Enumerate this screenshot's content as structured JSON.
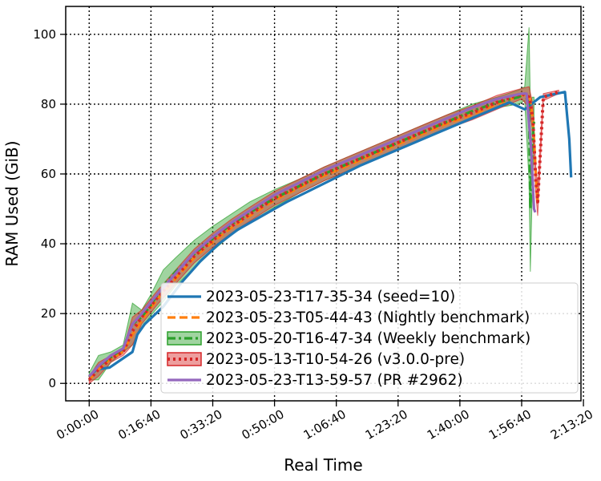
{
  "chart_data": {
    "type": "line",
    "title": "",
    "xlabel": "Real Time",
    "ylabel": "RAM Used (GiB)",
    "xlim": [
      -380,
      7960
    ],
    "ylim": [
      -5,
      108
    ],
    "x_ticks": [
      0,
      1000,
      2000,
      3000,
      4000,
      5000,
      6000,
      7000,
      8000
    ],
    "x_tick_labels": [
      "0:00:00",
      "0:16:40",
      "0:33:20",
      "0:50:00",
      "1:06:40",
      "1:23:20",
      "1:40:00",
      "1:56:40",
      "2:13:20"
    ],
    "y_ticks": [
      0,
      20,
      40,
      60,
      80,
      100
    ],
    "y_tick_labels": [
      "0",
      "20",
      "40",
      "60",
      "80",
      "100"
    ],
    "grid": true,
    "legend_position": "lower-right",
    "series": [
      {
        "name": "2023-05-23-T17-35-34 (seed=10)",
        "color": "#1f77b4",
        "style": "solid",
        "x": [
          0,
          120,
          330,
          700,
          780,
          900,
          1200,
          1500,
          1800,
          2100,
          2400,
          2800,
          3200,
          3600,
          4000,
          4400,
          4800,
          5200,
          5600,
          6000,
          6400,
          6800,
          7050,
          7300,
          7700,
          7770,
          7800
        ],
        "y": [
          2,
          4,
          4.5,
          9,
          14,
          17,
          22,
          29,
          35,
          40,
          44,
          48,
          52,
          55.5,
          59,
          62.5,
          65.5,
          68.5,
          71.5,
          74.5,
          77.5,
          80.5,
          78.5,
          82,
          83.5,
          70,
          59
        ]
      },
      {
        "name": "2023-05-23-T05-44-43 (Nightly benchmark)",
        "color": "#ff7f0e",
        "style": "dashed",
        "x": [
          0,
          150,
          350,
          550,
          700,
          850,
          1100,
          1400,
          1700,
          2000,
          2300,
          2600,
          3000,
          3400,
          3800,
          4200,
          4600,
          5000,
          5400,
          5800,
          6200,
          6600,
          7000,
          7120,
          7180,
          7230,
          7260
        ],
        "y": [
          1,
          4,
          7,
          9,
          14,
          18,
          24,
          30,
          36,
          40.5,
          44.5,
          48,
          52.5,
          56,
          59.5,
          62.5,
          65.5,
          68.5,
          71.5,
          74.5,
          77,
          80,
          82.5,
          83,
          76,
          60,
          52
        ]
      },
      {
        "name": "2023-05-20-T16-47-34 (Weekly benchmark)",
        "color": "#2ca02c",
        "style": "dashdot",
        "band": true,
        "x": [
          0,
          150,
          350,
          550,
          700,
          850,
          1000,
          1200,
          1400,
          1700,
          2000,
          2300,
          2600,
          3000,
          3400,
          3800,
          4200,
          4600,
          5000,
          5400,
          5800,
          6200,
          6600,
          6950,
          7050,
          7120,
          7140,
          7170,
          7200
        ],
        "y": [
          2,
          5,
          7.5,
          10,
          17,
          19,
          22.5,
          28,
          32,
          37,
          41.5,
          45.5,
          49,
          53,
          56.5,
          60,
          63,
          66,
          69,
          72,
          75,
          78,
          80.5,
          82,
          83,
          80,
          50,
          68,
          75
        ],
        "band_upper": [
          3,
          8,
          9,
          11,
          23,
          21,
          25.5,
          32.5,
          36,
          41,
          45,
          48.5,
          52,
          55.5,
          58.5,
          62,
          65,
          68,
          71,
          74,
          77,
          80,
          82,
          84,
          85,
          102,
          80,
          82,
          82
        ],
        "band_lower": [
          1,
          1,
          6,
          9,
          11,
          16,
          19.5,
          23.5,
          28,
          33,
          38,
          42.5,
          46,
          50.5,
          54.5,
          58,
          61,
          64,
          67,
          70,
          73,
          76,
          79,
          80,
          81,
          58,
          32,
          54,
          68
        ]
      },
      {
        "name": "2023-05-13-T10-54-26 (v3.0.0-pre)",
        "color": "#d62728",
        "style": "dotted",
        "band": true,
        "x": [
          0,
          150,
          350,
          550,
          700,
          850,
          1100,
          1400,
          1700,
          2000,
          2300,
          2600,
          3000,
          3400,
          3800,
          4200,
          4600,
          5000,
          5400,
          5800,
          6200,
          6600,
          7000,
          7120,
          7180,
          7230,
          7260,
          7350,
          7600
        ],
        "y": [
          1,
          4,
          7,
          9,
          15,
          19,
          24.5,
          30.5,
          36.5,
          41,
          45,
          48.5,
          53,
          56.5,
          60,
          63,
          66,
          69,
          72,
          75,
          77.5,
          80.5,
          83,
          82,
          76,
          58,
          52,
          82,
          83.5
        ],
        "band_upper": [
          2,
          6,
          8,
          10,
          19,
          21,
          26.5,
          32.5,
          38.5,
          43,
          47,
          50.5,
          55,
          58.5,
          62,
          65,
          68,
          71,
          74,
          77,
          79.5,
          82.5,
          84.5,
          85,
          80,
          62,
          56,
          83,
          84
        ],
        "band_lower": [
          0,
          2,
          6,
          8,
          11,
          17,
          22.5,
          28.5,
          34.5,
          39,
          43,
          46.5,
          51,
          54.5,
          58,
          61,
          64,
          67,
          70,
          73,
          75.5,
          78.5,
          81.5,
          79,
          72,
          54,
          48,
          81,
          83
        ]
      },
      {
        "name": "2023-05-23-T13-59-57 (PR #2962)",
        "color": "#9467bd",
        "style": "solid",
        "x": [
          0,
          150,
          350,
          550,
          700,
          850,
          1100,
          1400,
          1700,
          2000,
          2300,
          2600,
          3000,
          3400,
          3800,
          4200,
          4600,
          5000,
          5400,
          5800,
          6200,
          6600,
          7000,
          7080,
          7150,
          7200,
          7220
        ],
        "y": [
          2,
          5,
          8,
          10,
          17,
          20,
          25.5,
          31.5,
          37.5,
          42,
          46,
          49.5,
          54,
          57.5,
          61,
          64,
          67,
          70,
          73,
          76,
          79,
          81.5,
          83,
          83,
          68,
          50,
          49
        ]
      }
    ]
  }
}
